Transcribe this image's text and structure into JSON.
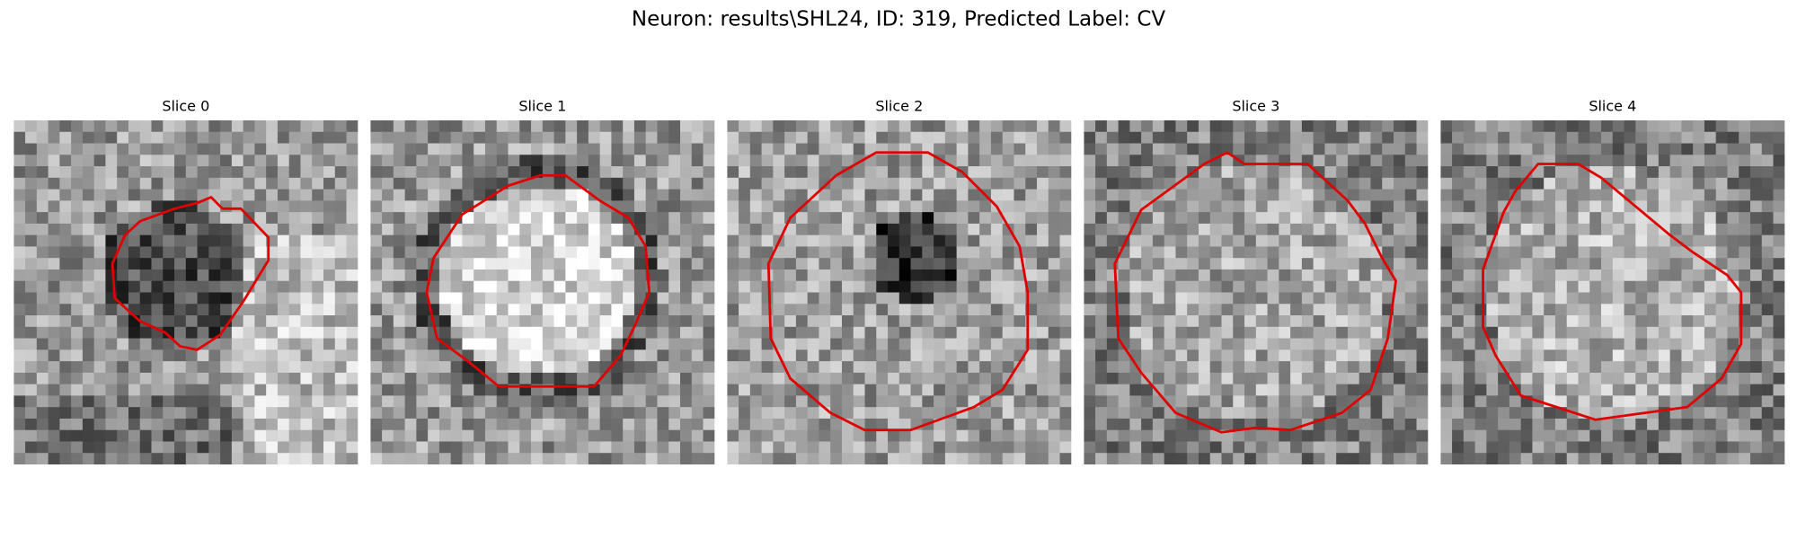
{
  "title": "Neuron: results\\SHL24, ID: 319, Predicted Label: CV",
  "panels": [
    {
      "title": "Slice 0"
    },
    {
      "title": "Slice 1"
    },
    {
      "title": "Slice 2"
    },
    {
      "title": "Slice 3"
    },
    {
      "title": "Slice 4"
    }
  ]
}
